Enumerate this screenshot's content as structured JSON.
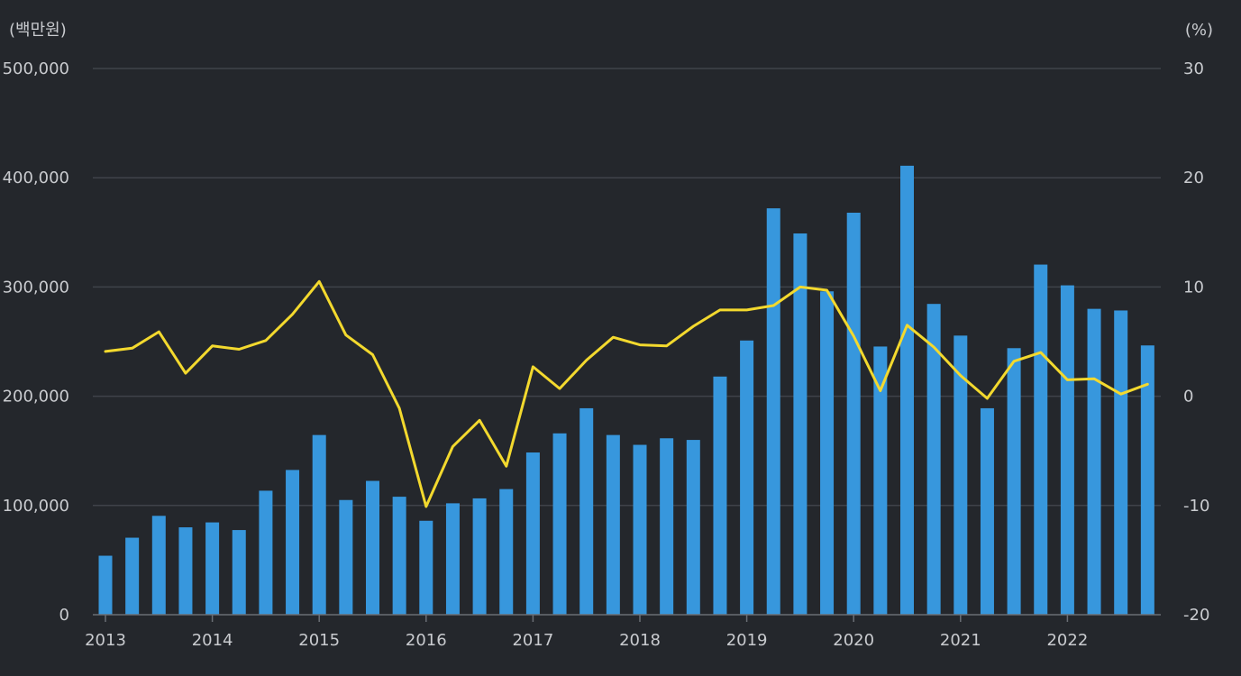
{
  "chart_data": {
    "type": "bar+line",
    "left_unit": "(백만원)",
    "right_unit": "(%)",
    "left_axis": {
      "min": 0,
      "max": 500000,
      "ticks": [
        0,
        100000,
        200000,
        300000,
        400000,
        500000
      ],
      "tick_labels": [
        "0",
        "100,000",
        "200,000",
        "300,000",
        "400,000",
        "500,000"
      ]
    },
    "right_axis": {
      "min": -20,
      "max": 30,
      "ticks": [
        -20,
        -10,
        0,
        10,
        20,
        30
      ],
      "tick_labels": [
        "-20",
        "-10",
        "0",
        "10",
        "20",
        "30"
      ]
    },
    "x_tick_labels": [
      "2013",
      "2014",
      "2015",
      "2016",
      "2017",
      "2018",
      "2019",
      "2020",
      "2021",
      "2022"
    ],
    "quarters": [
      "2013Q1",
      "2013Q2",
      "2013Q3",
      "2013Q4",
      "2014Q1",
      "2014Q2",
      "2014Q3",
      "2014Q4",
      "2015Q1",
      "2015Q2",
      "2015Q3",
      "2015Q4",
      "2016Q1",
      "2016Q2",
      "2016Q3",
      "2016Q4",
      "2017Q1",
      "2017Q2",
      "2017Q3",
      "2017Q4",
      "2018Q1",
      "2018Q2",
      "2018Q3",
      "2018Q4",
      "2019Q1",
      "2019Q2",
      "2019Q3",
      "2019Q4",
      "2020Q1",
      "2020Q2",
      "2020Q3",
      "2020Q4",
      "2021Q1",
      "2021Q2",
      "2021Q3",
      "2021Q4",
      "2022Q1",
      "2022Q2",
      "2022Q3",
      "2022Q4"
    ],
    "series": [
      {
        "name": "bar",
        "axis": "left",
        "color": "#3797dd",
        "values": [
          54000,
          70500,
          90500,
          80000,
          84500,
          77500,
          113500,
          132500,
          164500,
          105000,
          122500,
          108000,
          86000,
          102000,
          106500,
          115000,
          148500,
          166000,
          189000,
          164500,
          155500,
          161500,
          160000,
          218000,
          251000,
          372000,
          349000,
          296000,
          368000,
          245500,
          411000,
          284500,
          255500,
          189000,
          244000,
          320500,
          301500,
          280000,
          278500,
          246500
        ]
      },
      {
        "name": "line",
        "axis": "right",
        "color": "#f3d92e",
        "values": [
          4.1,
          4.4,
          5.9,
          2.1,
          4.6,
          4.3,
          5.1,
          7.5,
          10.5,
          5.6,
          3.8,
          -1.1,
          -10.1,
          -4.6,
          -2.2,
          -6.4,
          2.7,
          0.7,
          3.3,
          5.4,
          4.7,
          4.6,
          6.4,
          7.9,
          7.9,
          8.3,
          10.0,
          9.7,
          5.5,
          0.5,
          6.5,
          4.5,
          1.9,
          -0.2,
          3.2,
          4.0,
          1.5,
          1.6,
          0.2,
          1.1
        ]
      }
    ]
  }
}
